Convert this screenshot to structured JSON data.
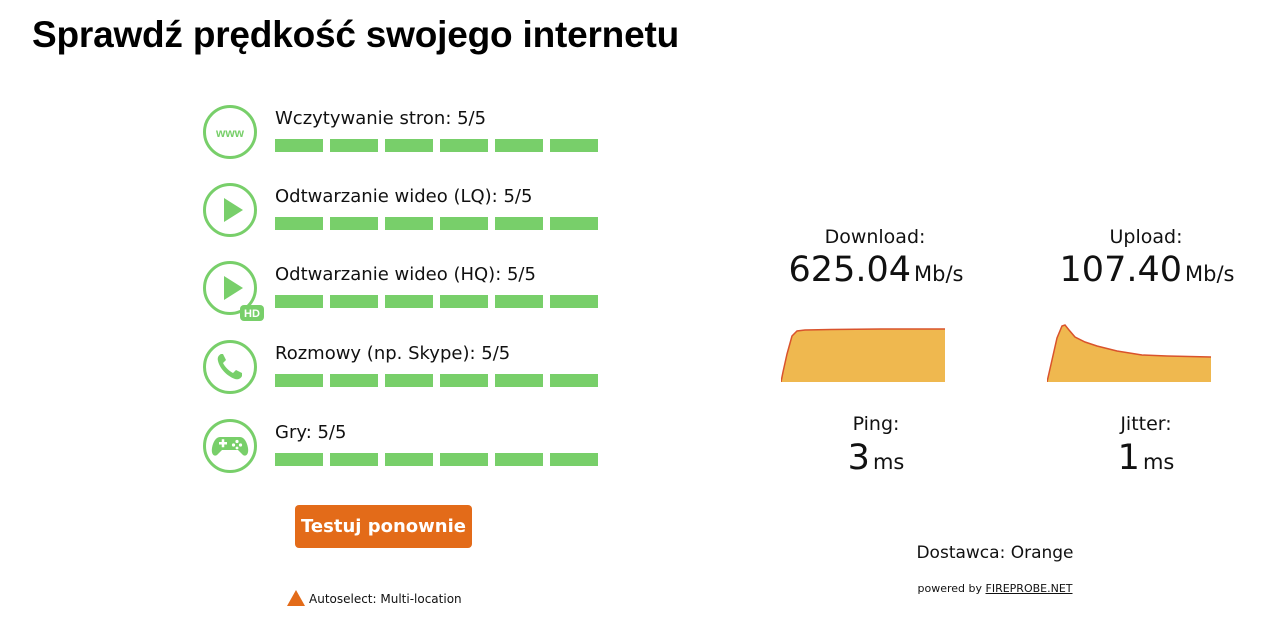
{
  "page": {
    "title": "Sprawdź prędkość swojego internetu"
  },
  "quality": [
    {
      "label": "Wczytywanie stron: 5/5",
      "icon": "www-icon",
      "segments_filled": 6,
      "segments_total": 6
    },
    {
      "label": "Odtwarzanie wideo (LQ): 5/5",
      "icon": "play-icon",
      "segments_filled": 6,
      "segments_total": 6
    },
    {
      "label": "Odtwarzanie wideo (HQ): 5/5",
      "icon": "play-hd-icon",
      "hd_badge": "HD",
      "segments_filled": 6,
      "segments_total": 6
    },
    {
      "label": "Rozmowy (np. Skype): 5/5",
      "icon": "phone-icon",
      "segments_filled": 6,
      "segments_total": 6
    },
    {
      "label": "Gry: 5/5",
      "icon": "gamepad-icon",
      "segments_filled": 6,
      "segments_total": 6
    }
  ],
  "www_icon_text": "www",
  "retest_label": "Testuj ponownie",
  "autoselect_text": "Autoselect: Multi-location",
  "results": {
    "download": {
      "label": "Download:",
      "value": "625.04",
      "unit": "Mb/s"
    },
    "upload": {
      "label": "Upload:",
      "value": "107.40",
      "unit": "Mb/s"
    },
    "ping": {
      "label": "Ping:",
      "value": "3",
      "unit": "ms"
    },
    "jitter": {
      "label": "Jitter:",
      "value": "1",
      "unit": "ms"
    }
  },
  "provider_text": "Dostawca: Orange",
  "powered": {
    "prefix": "powered by",
    "link": "FIREPROBE.NET"
  },
  "colors": {
    "accent_green": "#78cf6a",
    "button_orange": "#e36b19",
    "graph_fill": "#efb84f",
    "graph_line": "#d9532c"
  }
}
